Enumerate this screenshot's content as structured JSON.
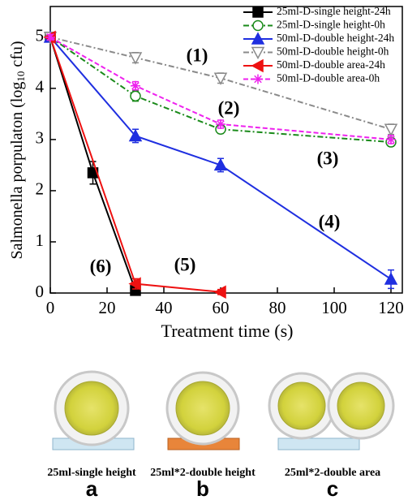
{
  "chart_data": {
    "type": "line",
    "xlabel": "Treatment time (s)",
    "ylabel": [
      "Salmonella porpulaton (log",
      "10",
      " cfu)"
    ],
    "x": [
      0,
      15,
      30,
      60,
      120
    ],
    "xlim": [
      0,
      124
    ],
    "xticks": [
      0,
      20,
      40,
      60,
      80,
      100,
      120
    ],
    "ylim": [
      0,
      5.6
    ],
    "yticks": [
      0,
      1,
      2,
      3,
      4,
      5
    ],
    "legend": "upper right",
    "series": [
      {
        "name": "25ml-D-single height-24h",
        "color": "#000000",
        "marker": "square",
        "dash": "solid",
        "values": [
          5,
          2.35,
          0.05,
          null,
          null
        ],
        "errors": [
          0.05,
          0.22,
          0.05,
          null,
          null
        ]
      },
      {
        "name": "25ml-D-single height-0h",
        "color": "#1a8a1a",
        "marker": "circle-open",
        "dash": "dashdot",
        "values": [
          5,
          null,
          3.85,
          3.2,
          2.95
        ],
        "errors": [
          0.05,
          null,
          0.1,
          0.08,
          0.08
        ]
      },
      {
        "name": "50ml-D-double height-24h",
        "color": "#1f2fe0",
        "marker": "triangle-up",
        "dash": "solid",
        "values": [
          5,
          null,
          3.07,
          2.5,
          0.27
        ],
        "errors": [
          0.05,
          null,
          0.13,
          0.13,
          0.18
        ]
      },
      {
        "name": "50ml-D-double height-0h",
        "color": "#8a8a8a",
        "marker": "triangle-down-open",
        "dash": "dashdot",
        "values": [
          5,
          null,
          4.6,
          4.2,
          3.2
        ],
        "errors": [
          0.05,
          null,
          0.1,
          0.1,
          0.1
        ]
      },
      {
        "name": "50ml-D-double area-24h",
        "color": "#ee1111",
        "marker": "triangle-left",
        "dash": "solid",
        "values": [
          5,
          null,
          0.18,
          0.02,
          null
        ],
        "errors": [
          0.05,
          null,
          0.1,
          0.05,
          null
        ]
      },
      {
        "name": "50ml-D-double area-0h",
        "color": "#ee22ee",
        "marker": "star",
        "dash": "dashed",
        "values": [
          5,
          null,
          4.05,
          3.3,
          3.0
        ],
        "errors": [
          0.05,
          null,
          0.08,
          0.08,
          0.08
        ]
      }
    ],
    "annotations": [
      "(1)",
      "(2)",
      "(3)",
      "(4)",
      "(5)",
      "(6)"
    ]
  },
  "panels": [
    {
      "caption": "25ml-single height",
      "letter": "a"
    },
    {
      "caption": "25ml*2-double height",
      "letter": "b"
    },
    {
      "caption": "25ml*2-double area",
      "letter": "c"
    }
  ]
}
